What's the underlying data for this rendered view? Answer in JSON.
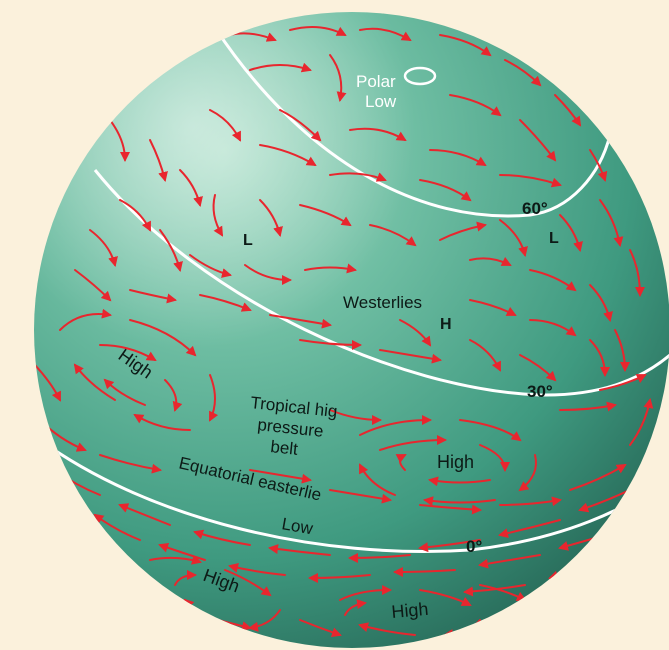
{
  "labels": {
    "polar_low_1": "Polar",
    "polar_low_2": "Low",
    "lat_60": "60°",
    "lat_30": "30°",
    "lat_0": "0°",
    "L_left": "L",
    "L_right": "L",
    "westerlies": "Westerlies",
    "H": "H",
    "high_left": "High",
    "tropical_1": "Tropical hig",
    "tropical_2": "pressure",
    "tropical_3": "belt",
    "high_center": "High",
    "equatorial": "Equatorial easterlie",
    "low": "Low",
    "high_bottom_left": "High",
    "high_bottom_right": "High"
  },
  "colors": {
    "background": "#fbf1dc",
    "globe_light": "#8fd0b6",
    "globe_mid": "#4ea98e",
    "globe_dark": "#2c7563",
    "arrow": "#e8262e",
    "latitude_line": "#ffffff"
  }
}
